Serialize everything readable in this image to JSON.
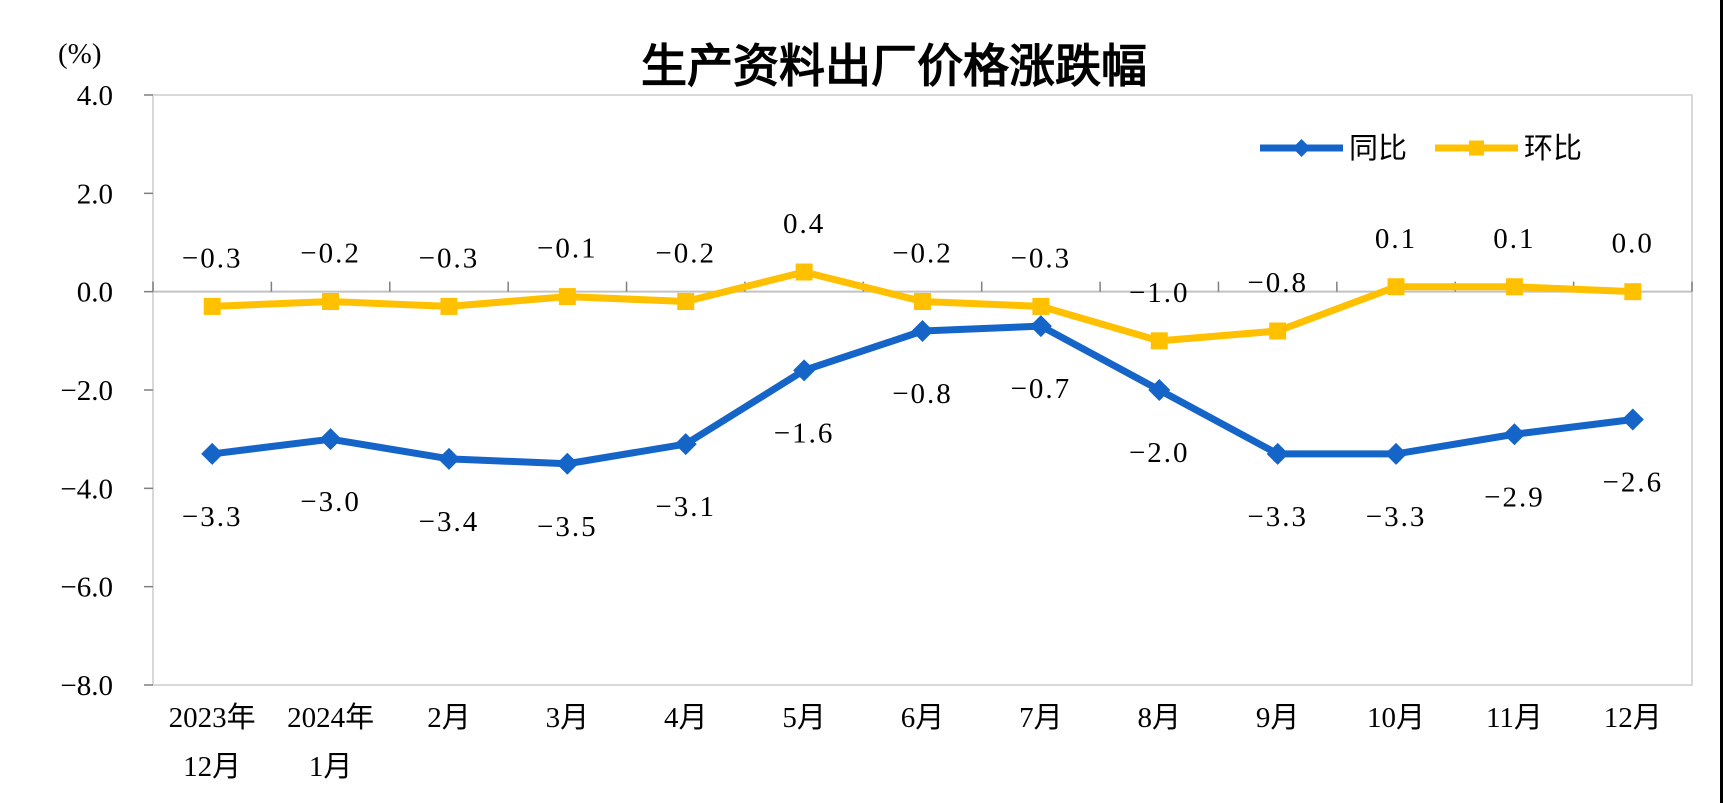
{
  "page": {
    "background_color": "#FFFFFF",
    "right_border_color": "#000000"
  },
  "chart_data": {
    "type": "line",
    "title": "生产资料出厂价格涨跌幅",
    "y_unit_label": "(%)",
    "xlabel": "",
    "ylabel": "(%)",
    "ylim": [
      -8.0,
      4.0
    ],
    "ytick_step": 2.0,
    "ytick_labels": [
      "4.0",
      "2.0",
      "0.0",
      "-2.0",
      "-4.0",
      "-6.0",
      "-8.0"
    ],
    "grid": false,
    "legend_position": "top-right",
    "categories": [
      [
        "2023年",
        "12月"
      ],
      [
        "2024年",
        "1月"
      ],
      [
        "2月"
      ],
      [
        "3月"
      ],
      [
        "4月"
      ],
      [
        "5月"
      ],
      [
        "6月"
      ],
      [
        "7月"
      ],
      [
        "8月"
      ],
      [
        "9月"
      ],
      [
        "10月"
      ],
      [
        "11月"
      ],
      [
        "12月"
      ]
    ],
    "series": [
      {
        "id": "yoy",
        "name": "同比",
        "color": "#1565C8",
        "marker": "diamond",
        "label_position": "below",
        "values": [
          -3.3,
          -3.0,
          -3.4,
          -3.5,
          -3.1,
          -1.6,
          -0.8,
          -0.7,
          -2.0,
          -3.3,
          -3.3,
          -2.9,
          -2.6
        ],
        "labels": [
          "-3.3",
          "-3.0",
          "-3.4",
          "-3.5",
          "-3.1",
          "-1.6",
          "-0.8",
          "-0.7",
          "-2.0",
          "-3.3",
          "-3.3",
          "-2.9",
          "-2.6"
        ]
      },
      {
        "id": "mom",
        "name": "环比",
        "color": "#FFC000",
        "marker": "square",
        "label_position": "above",
        "values": [
          -0.3,
          -0.2,
          -0.3,
          -0.1,
          -0.2,
          0.4,
          -0.2,
          -0.3,
          -1.0,
          -0.8,
          0.1,
          0.1,
          0.0
        ],
        "labels": [
          "-0.3",
          "-0.2",
          "-0.3",
          "-0.1",
          "-0.2",
          "0.4",
          "-0.2",
          "-0.3",
          "-1.0",
          "-0.8",
          "0.1",
          "0.1",
          "0.0"
        ]
      }
    ],
    "colors": {
      "plot_border": "#D9D9D9",
      "zero_line": "#C2C2C2",
      "tick_mark": "#7F7F7F",
      "text": "#000000"
    }
  }
}
